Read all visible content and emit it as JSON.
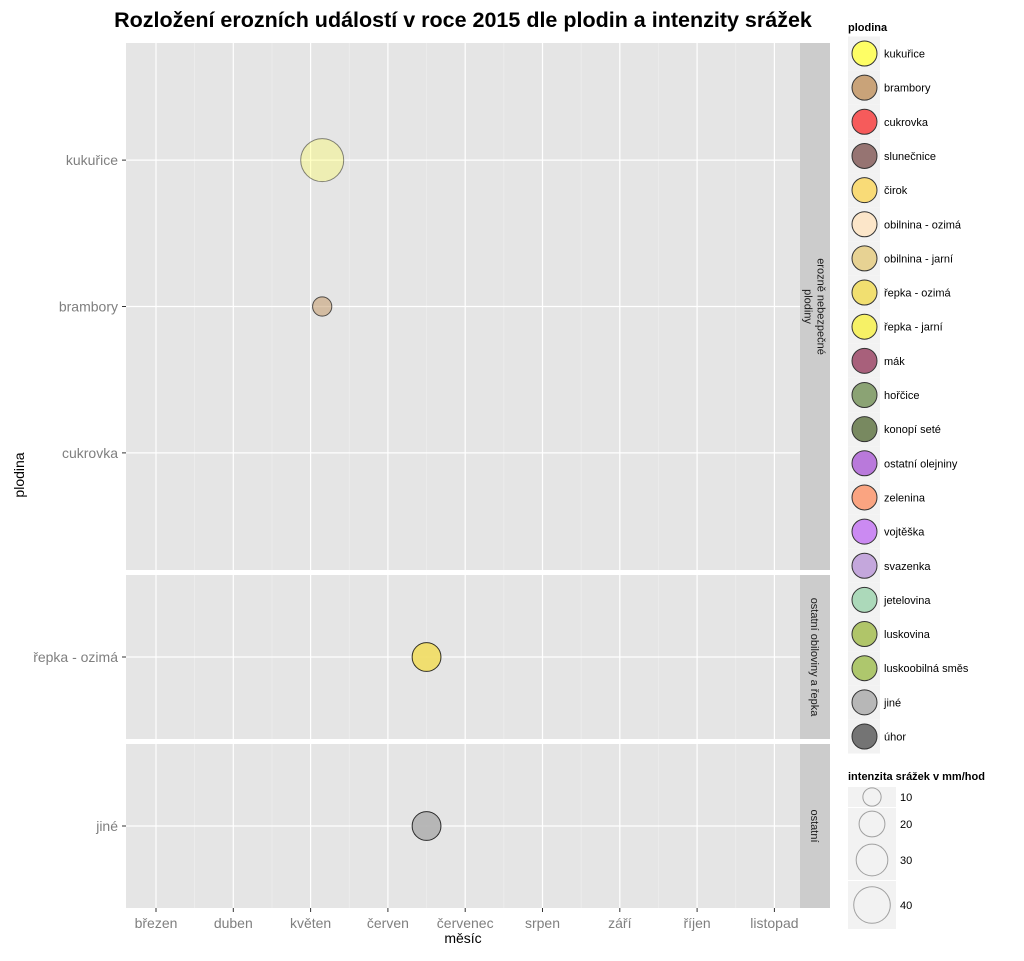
{
  "chart_data": {
    "type": "scatter",
    "title": "Rozložení erozních událostí v roce 2015 dle plodin a intenzity srážek",
    "xlabel": "měsíc",
    "ylabel": "plodina",
    "x_ticks": [
      "březen",
      "duben",
      "květen",
      "červen",
      "červenec",
      "srpen",
      "září",
      "říjen",
      "listopad"
    ],
    "facets": [
      {
        "label_lines": [
          "erozně nebezpečné",
          "plodiny"
        ],
        "categories": [
          "kukuřice",
          "brambory",
          "cukrovka"
        ]
      },
      {
        "label_lines": [
          "ostatní obiloviny a řepka"
        ],
        "categories": [
          "řepka - ozimá"
        ]
      },
      {
        "label_lines": [
          "ostatní"
        ],
        "categories": [
          "jiné"
        ]
      }
    ],
    "points": [
      {
        "crop": "kukuřice",
        "month": 5.15,
        "intensity": 40,
        "alpha": 0.35
      },
      {
        "crop": "brambory",
        "month": 5.15,
        "intensity": 8,
        "alpha": 0.55
      },
      {
        "crop": "řepka - ozimá",
        "month": 6.5,
        "intensity": 18,
        "alpha": 0.9
      },
      {
        "crop": "jiné",
        "month": 6.5,
        "intensity": 18,
        "alpha": 0.9
      }
    ],
    "legend_fill": {
      "title": "plodina",
      "items": [
        {
          "label": "kukuřice",
          "color": "#ffff55"
        },
        {
          "label": "brambory",
          "color": "#c49a6c"
        },
        {
          "label": "cukrovka",
          "color": "#f64a4a"
        },
        {
          "label": "slunečnice",
          "color": "#8c6664"
        },
        {
          "label": "čirok",
          "color": "#f9d869"
        },
        {
          "label": "obilnina - ozimá",
          "color": "#fde4c4"
        },
        {
          "label": "obilnina - jarní",
          "color": "#e6ce88"
        },
        {
          "label": "řepka - ozimá",
          "color": "#f1dd62"
        },
        {
          "label": "řepka - jarní",
          "color": "#f6f156"
        },
        {
          "label": "mák",
          "color": "#a0506e"
        },
        {
          "label": "hořčice",
          "color": "#809a66"
        },
        {
          "label": "konopí seté",
          "color": "#6a7d50"
        },
        {
          "label": "ostatní olejniny",
          "color": "#b36bd8"
        },
        {
          "label": "zelenina",
          "color": "#fb9b74"
        },
        {
          "label": "vojtěška",
          "color": "#c77ef2"
        },
        {
          "label": "svazenka",
          "color": "#bf9fd9"
        },
        {
          "label": "jetelovina",
          "color": "#a4d6b4"
        },
        {
          "label": "luskovina",
          "color": "#a8c05a"
        },
        {
          "label": "luskoobilná směs",
          "color": "#a6c25e"
        },
        {
          "label": "jiné",
          "color": "#b0b0b0"
        },
        {
          "label": "úhor",
          "color": "#666666"
        }
      ]
    },
    "legend_size": {
      "title": "intenzita srážek v mm/hod",
      "items": [
        {
          "label": "10",
          "value": 10
        },
        {
          "label": "20",
          "value": 20
        },
        {
          "label": "30",
          "value": 30
        },
        {
          "label": "40",
          "value": 40
        }
      ]
    },
    "colors": {
      "panel_bg": "#e5e5e5",
      "grid_major": "#ffffff",
      "grid_minor": "#f0f0f0",
      "strip_bg": "#cccccc",
      "tick_label": "#7f7f7f",
      "legend_key_bg": "#f2f2f2"
    },
    "grid": true,
    "legend_position": "right"
  }
}
